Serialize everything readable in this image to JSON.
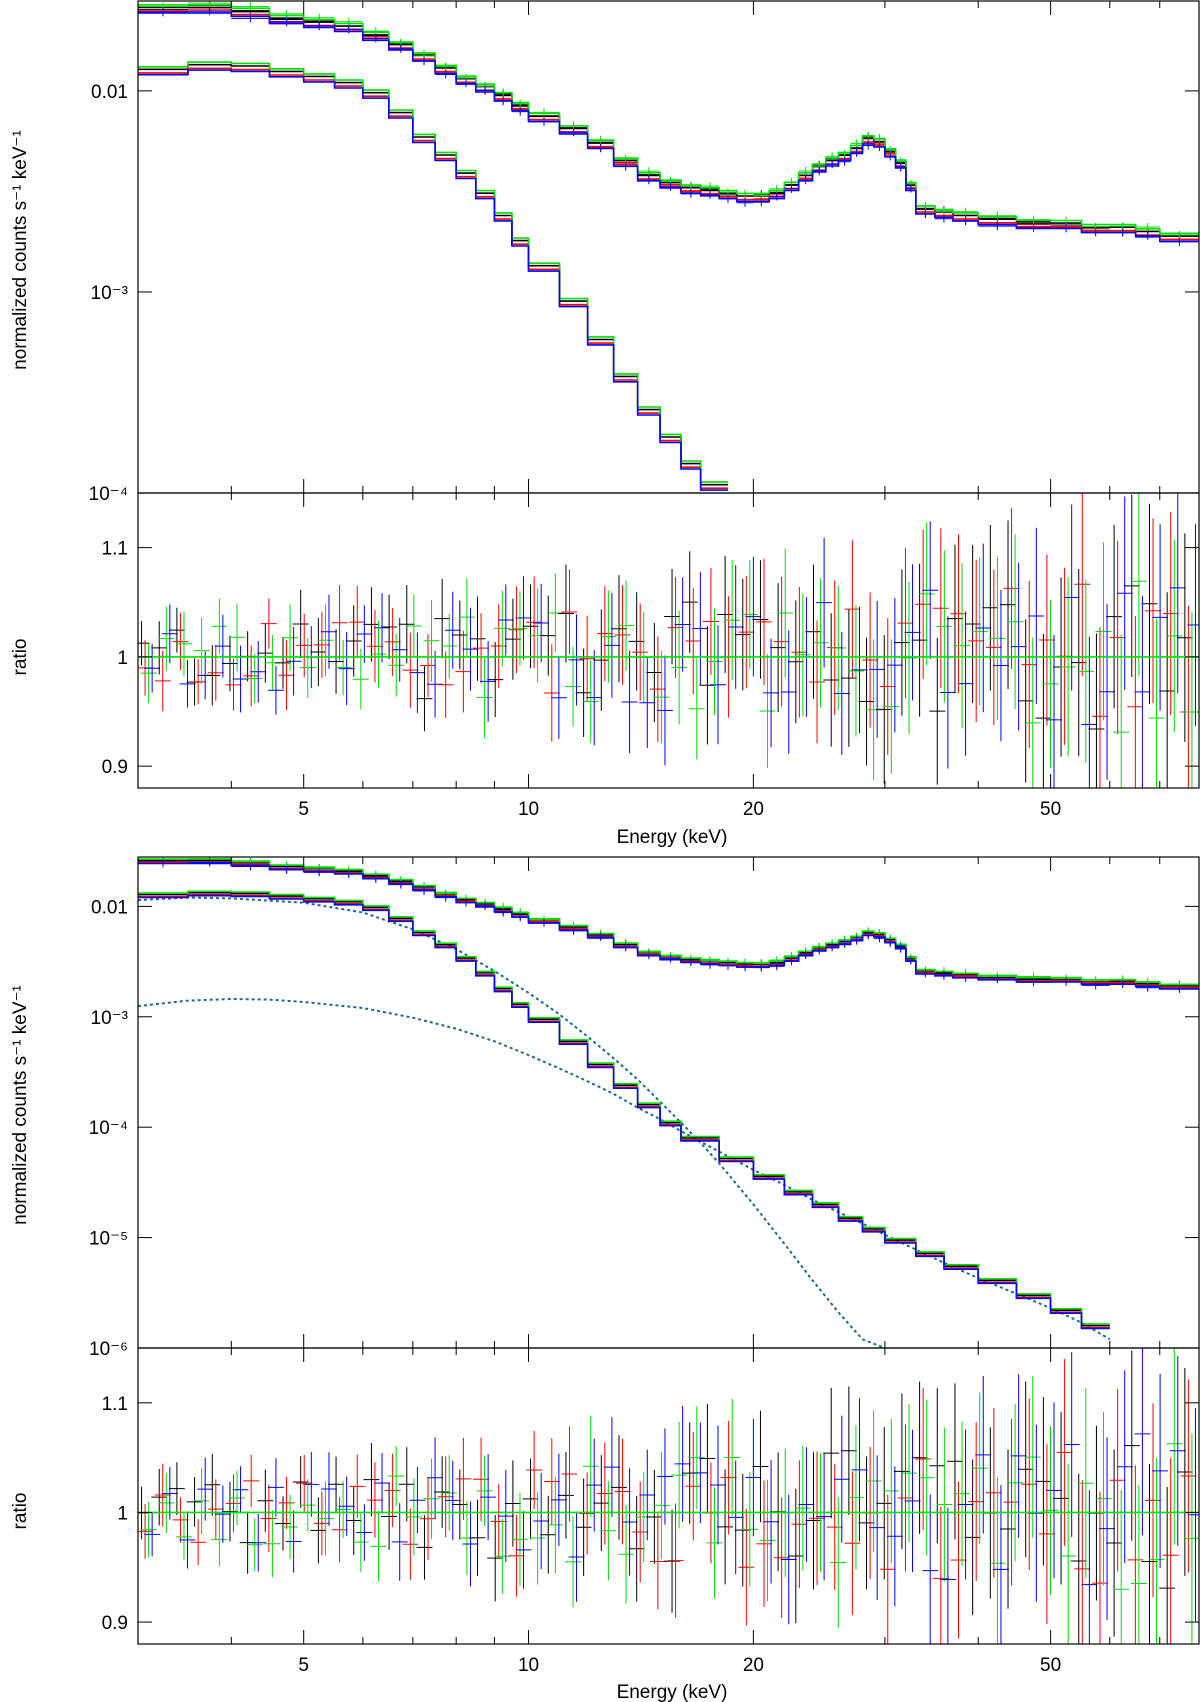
{
  "figure": {
    "panel_axis_titles": {
      "top": {
        "spectrum_ylabel": "normalized counts s⁻¹ keV⁻¹",
        "ratio_ylabel": "ratio",
        "xlabel": "Energy (keV)"
      },
      "bottom": {
        "spectrum_ylabel": "normalized counts s⁻¹ keV⁻¹",
        "ratio_ylabel": "ratio",
        "xlabel": "Energy (keV)"
      }
    }
  },
  "colors": {
    "series": [
      "#000000",
      "#ff0000",
      "#00dd00",
      "#0000ff"
    ],
    "component": "#1a6a8a",
    "unity": "#00e000"
  },
  "chart_data": [
    {
      "type": "line",
      "panel": "top-spectrum",
      "xscale": "log",
      "yscale": "log",
      "xlim": [
        3,
        79
      ],
      "ylim": [
        0.0001,
        0.028
      ],
      "yticks": [
        {
          "value": 0.01,
          "label": "0.01"
        },
        {
          "value": 0.001,
          "label": "10⁻³"
        },
        {
          "value": 0.0001,
          "label": "10⁻⁴"
        }
      ],
      "ylabel": "normalized counts s⁻¹ keV⁻¹",
      "series": [
        {
          "group": "upper",
          "x": [
            3,
            3.5,
            4,
            4.5,
            5,
            5.5,
            6,
            6.5,
            7,
            7.5,
            8,
            8.5,
            9,
            9.5,
            10,
            11,
            12,
            13,
            14,
            15,
            16,
            17,
            18,
            19,
            20,
            21,
            22,
            23,
            24,
            25,
            26,
            27,
            28,
            29,
            30,
            31,
            32,
            33,
            35,
            37,
            40,
            45,
            50,
            55,
            60,
            65,
            70,
            79
          ],
          "y": [
            0.026,
            0.026,
            0.025,
            0.023,
            0.022,
            0.021,
            0.019,
            0.017,
            0.015,
            0.013,
            0.0115,
            0.0105,
            0.0095,
            0.0085,
            0.0075,
            0.0065,
            0.0055,
            0.0045,
            0.0038,
            0.0035,
            0.0033,
            0.0032,
            0.0031,
            0.003,
            0.003,
            0.0031,
            0.0034,
            0.0038,
            0.0042,
            0.0045,
            0.0048,
            0.0052,
            0.0058,
            0.0056,
            0.005,
            0.0044,
            0.0034,
            0.0026,
            0.0025,
            0.0024,
            0.0023,
            0.0022,
            0.0022,
            0.0021,
            0.0021,
            0.002,
            0.0019,
            0.0018
          ]
        },
        {
          "group": "lower",
          "x": [
            3,
            3.5,
            4,
            4.5,
            5,
            5.5,
            6,
            6.5,
            7,
            7.5,
            8,
            8.5,
            9,
            9.5,
            10,
            11,
            12,
            13,
            14,
            15,
            16,
            17,
            18.5
          ],
          "y": [
            0.0128,
            0.0135,
            0.0133,
            0.0125,
            0.0118,
            0.011,
            0.0098,
            0.0078,
            0.0059,
            0.0048,
            0.0039,
            0.0031,
            0.0024,
            0.0018,
            0.00135,
            0.0009,
            0.00058,
            0.00038,
            0.00026,
            0.00019,
            0.00014,
            0.00011,
            0.0001
          ]
        }
      ],
      "detector_scale": [
        1.0,
        0.96,
        1.03,
        0.94
      ]
    },
    {
      "type": "scatter",
      "panel": "top-ratio",
      "xscale": "log",
      "xlim": [
        3,
        79
      ],
      "ylim": [
        0.88,
        1.15
      ],
      "yticks": [
        {
          "value": 1.1,
          "label": "1.1"
        },
        {
          "value": 1,
          "label": "1"
        },
        {
          "value": 0.9,
          "label": "0.9"
        }
      ],
      "xticks": [
        {
          "value": 5,
          "label": "5"
        },
        {
          "value": 10,
          "label": "10"
        },
        {
          "value": 20,
          "label": "20"
        },
        {
          "value": 50,
          "label": "50"
        }
      ],
      "ylabel": "ratio",
      "xlabel": "Energy (keV)",
      "reference_line": 1
    },
    {
      "type": "line",
      "panel": "bottom-spectrum",
      "xscale": "log",
      "yscale": "log",
      "xlim": [
        3,
        79
      ],
      "ylim": [
        1e-06,
        0.028
      ],
      "yticks": [
        {
          "value": 0.01,
          "label": "0.01"
        },
        {
          "value": 0.001,
          "label": "10⁻³"
        },
        {
          "value": 0.0001,
          "label": "10⁻⁴"
        },
        {
          "value": 1e-05,
          "label": "10⁻⁵"
        },
        {
          "value": 1e-06,
          "label": "10⁻⁶"
        }
      ],
      "ylabel": "normalized counts s⁻¹ keV⁻¹",
      "series": [
        {
          "group": "upper",
          "x": [
            3,
            3.5,
            4,
            4.5,
            5,
            5.5,
            6,
            6.5,
            7,
            7.5,
            8,
            8.5,
            9,
            9.5,
            10,
            11,
            12,
            13,
            14,
            15,
            16,
            17,
            18,
            19,
            20,
            21,
            22,
            23,
            24,
            25,
            26,
            27,
            28,
            29,
            30,
            31,
            32,
            33,
            35,
            37,
            40,
            45,
            50,
            55,
            60,
            65,
            70,
            79
          ],
          "y": [
            0.026,
            0.026,
            0.025,
            0.023,
            0.022,
            0.021,
            0.019,
            0.017,
            0.015,
            0.013,
            0.0115,
            0.0105,
            0.0095,
            0.0085,
            0.0075,
            0.0065,
            0.0055,
            0.0045,
            0.0038,
            0.0035,
            0.0033,
            0.0032,
            0.0031,
            0.003,
            0.003,
            0.0031,
            0.0034,
            0.0038,
            0.0042,
            0.0045,
            0.0048,
            0.0052,
            0.0058,
            0.0056,
            0.005,
            0.0044,
            0.0034,
            0.0026,
            0.0025,
            0.0024,
            0.0023,
            0.0022,
            0.0022,
            0.0021,
            0.0021,
            0.002,
            0.0019,
            0.0018
          ]
        },
        {
          "group": "lower",
          "x": [
            3,
            3.5,
            4,
            4.5,
            5,
            5.5,
            6,
            6.5,
            7,
            7.5,
            8,
            8.5,
            9,
            9.5,
            10,
            11,
            12,
            13,
            14,
            15,
            16,
            18,
            20,
            22,
            24,
            26,
            28,
            30,
            33,
            36,
            40,
            45,
            50,
            55,
            60
          ],
          "y": [
            0.0128,
            0.0133,
            0.0131,
            0.0124,
            0.0117,
            0.011,
            0.0098,
            0.0078,
            0.0058,
            0.0045,
            0.0034,
            0.0025,
            0.0018,
            0.0013,
            0.00095,
            0.0006,
            0.00037,
            0.00024,
            0.00016,
            0.00011,
            8e-05,
            5.2e-05,
            3.6e-05,
            2.6e-05,
            2e-05,
            1.5e-05,
            1.2e-05,
            9.5e-06,
            7.2e-06,
            5.5e-06,
            4.1e-06,
            3e-06,
            2.2e-06,
            1.6e-06,
            1.1e-06
          ]
        }
      ],
      "components": [
        {
          "x": [
            3,
            3.5,
            4,
            5,
            6,
            7,
            8,
            9,
            10,
            11,
            12,
            13,
            14,
            15,
            16,
            17,
            18,
            20,
            22,
            24,
            26,
            28,
            30
          ],
          "y": [
            0.0114,
            0.012,
            0.0118,
            0.0108,
            0.0088,
            0.0062,
            0.0041,
            0.0026,
            0.00165,
            0.00105,
            0.00066,
            0.00042,
            0.00027,
            0.00017,
            0.00011,
            7.2e-05,
            4.7e-05,
            2e-05,
            8.8e-06,
            4.1e-06,
            2.1e-06,
            1.2e-06,
            1e-06
          ]
        },
        {
          "x": [
            3,
            3.5,
            4,
            4.5,
            5,
            6,
            7,
            8,
            9,
            10,
            11,
            12,
            13,
            14,
            15,
            16,
            17,
            18,
            20,
            22,
            24,
            26,
            28,
            30,
            33,
            36,
            40,
            45,
            50,
            55,
            60
          ],
          "y": [
            0.00125,
            0.0014,
            0.00145,
            0.00143,
            0.00136,
            0.0012,
            0.00098,
            0.00078,
            0.0006,
            0.00045,
            0.00034,
            0.00026,
            0.0002,
            0.00015,
            0.000118,
            9.2e-05,
            7.4e-05,
            6e-05,
            4.1e-05,
            3e-05,
            2.2e-05,
            1.7e-05,
            1.34e-05,
            1.06e-05,
            7.8e-06,
            5.9e-06,
            4.3e-06,
            3.1e-06,
            2.3e-06,
            1.7e-06,
            1.2e-06
          ]
        }
      ],
      "detector_scale": [
        1.0,
        0.96,
        1.03,
        0.94
      ]
    },
    {
      "type": "scatter",
      "panel": "bottom-ratio",
      "xscale": "log",
      "xlim": [
        3,
        79
      ],
      "ylim": [
        0.88,
        1.15
      ],
      "yticks": [
        {
          "value": 1.1,
          "label": "1.1"
        },
        {
          "value": 1,
          "label": "1"
        },
        {
          "value": 0.9,
          "label": "0.9"
        }
      ],
      "xticks": [
        {
          "value": 5,
          "label": "5"
        },
        {
          "value": 10,
          "label": "10"
        },
        {
          "value": 20,
          "label": "20"
        },
        {
          "value": 50,
          "label": "50"
        }
      ],
      "ylabel": "ratio",
      "xlabel": "Energy (keV)",
      "reference_line": 1
    }
  ]
}
